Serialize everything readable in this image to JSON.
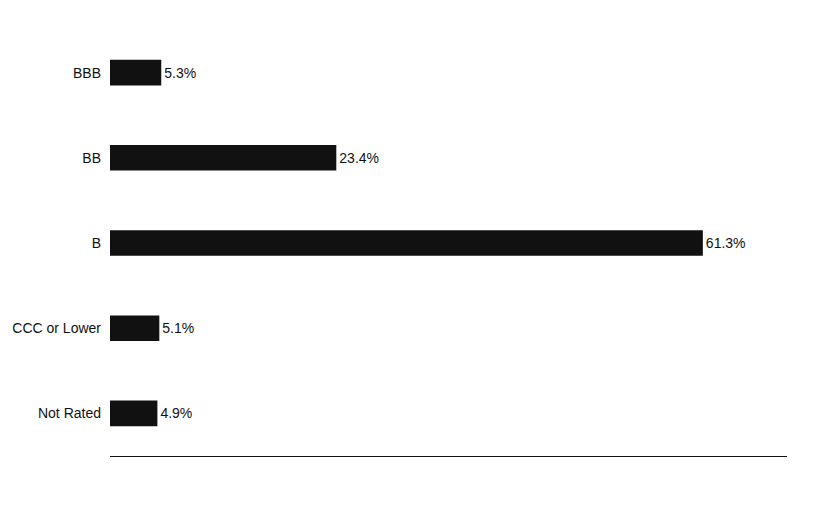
{
  "chart_data": {
    "type": "bar",
    "orientation": "horizontal",
    "categories": [
      "BBB",
      "BB",
      "B",
      "CCC or Lower",
      "Not Rated"
    ],
    "values": [
      5.3,
      23.4,
      61.3,
      5.1,
      4.9
    ],
    "value_labels": [
      "5.3%",
      "23.4%",
      "61.3%",
      "5.1%",
      "4.9%"
    ],
    "color": "#111111",
    "xlim": [
      0,
      70
    ],
    "xticks": [],
    "grid": false,
    "data_labels": true,
    "tick_labels": "y"
  }
}
